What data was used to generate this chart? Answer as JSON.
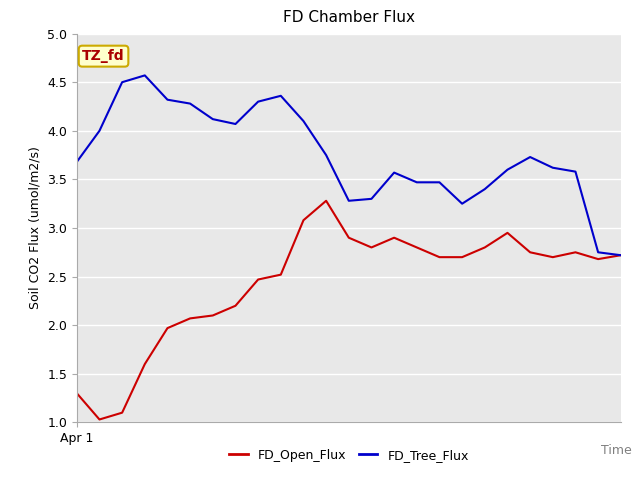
{
  "title": "FD Chamber Flux",
  "xlabel": "Time",
  "ylabel": "Soil CO2 Flux (umol/m2/s)",
  "annotation_text": "TZ_fd",
  "ylim": [
    1.0,
    5.0
  ],
  "yticks": [
    1.0,
    1.5,
    2.0,
    2.5,
    3.0,
    3.5,
    4.0,
    4.5,
    5.0
  ],
  "xstart_label": "Apr 1",
  "red_line": {
    "label": "FD_Open_Flux",
    "color": "#cc0000",
    "x": [
      0,
      1,
      2,
      3,
      4,
      5,
      6,
      7,
      8,
      9,
      10,
      11,
      12,
      13,
      14,
      15,
      16,
      17,
      18,
      19,
      20,
      21,
      22,
      23,
      24
    ],
    "y": [
      1.3,
      1.03,
      1.1,
      1.6,
      1.97,
      2.07,
      2.1,
      2.2,
      2.47,
      2.52,
      3.08,
      3.28,
      2.9,
      2.8,
      2.9,
      2.8,
      2.7,
      2.7,
      2.8,
      2.95,
      2.75,
      2.7,
      2.75,
      2.68,
      2.72
    ]
  },
  "blue_line": {
    "label": "FD_Tree_Flux",
    "color": "#0000cc",
    "x": [
      0,
      1,
      2,
      3,
      4,
      5,
      6,
      7,
      8,
      9,
      10,
      11,
      12,
      13,
      14,
      15,
      16,
      17,
      18,
      19,
      20,
      21,
      22,
      23,
      24
    ],
    "y": [
      3.68,
      4.0,
      4.5,
      4.57,
      4.32,
      4.28,
      4.12,
      4.07,
      4.3,
      4.36,
      4.1,
      3.75,
      3.28,
      3.3,
      3.57,
      3.47,
      3.47,
      3.25,
      3.4,
      3.6,
      3.73,
      3.62,
      3.58,
      2.75,
      2.72
    ]
  },
  "fig_bg_color": "#ffffff",
  "plot_bg_color": "#e8e8e8",
  "grid_color": "#ffffff",
  "annotation_bg": "#ffffcc",
  "annotation_border": "#ccaa00",
  "annotation_text_color": "#aa0000",
  "title_fontsize": 11,
  "axis_label_fontsize": 9,
  "tick_fontsize": 9,
  "legend_fontsize": 9
}
